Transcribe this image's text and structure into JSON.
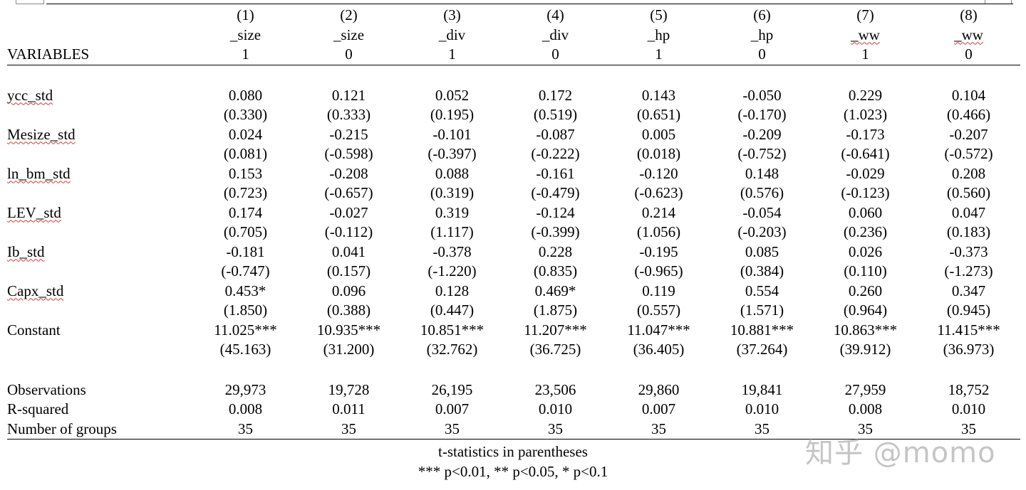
{
  "table": {
    "columns": [
      {
        "num": "(1)",
        "dep": "_size",
        "group": "1"
      },
      {
        "num": "(2)",
        "dep": "_size",
        "group": "0"
      },
      {
        "num": "(3)",
        "dep": "_div",
        "group": "1"
      },
      {
        "num": "(4)",
        "dep": "_div",
        "group": "0"
      },
      {
        "num": "(5)",
        "dep": "_hp",
        "group": "1"
      },
      {
        "num": "(6)",
        "dep": "_hp",
        "group": "0"
      },
      {
        "num": "(7)",
        "dep": "_ww",
        "group": "1"
      },
      {
        "num": "(8)",
        "dep": "_ww",
        "group": "0"
      }
    ],
    "variables_header": "VARIABLES",
    "rows": [
      {
        "name": "ycc_std",
        "coef": [
          "0.080",
          "0.121",
          "0.052",
          "0.172",
          "0.143",
          "-0.050",
          "0.229",
          "0.104"
        ],
        "tstat": [
          "(0.330)",
          "(0.333)",
          "(0.195)",
          "(0.519)",
          "(0.651)",
          "(-0.170)",
          "(1.023)",
          "(0.466)"
        ]
      },
      {
        "name": "Mesize_std",
        "coef": [
          "0.024",
          "-0.215",
          "-0.101",
          "-0.087",
          "0.005",
          "-0.209",
          "-0.173",
          "-0.207"
        ],
        "tstat": [
          "(0.081)",
          "(-0.598)",
          "(-0.397)",
          "(-0.222)",
          "(0.018)",
          "(-0.752)",
          "(-0.641)",
          "(-0.572)"
        ]
      },
      {
        "name": "ln_bm_std",
        "coef": [
          "0.153",
          "-0.208",
          "0.088",
          "-0.161",
          "-0.120",
          "0.148",
          "-0.029",
          "0.208"
        ],
        "tstat": [
          "(0.723)",
          "(-0.657)",
          "(0.319)",
          "(-0.479)",
          "(-0.623)",
          "(0.576)",
          "(-0.123)",
          "(0.560)"
        ]
      },
      {
        "name": "LEV_std",
        "coef": [
          "0.174",
          "-0.027",
          "0.319",
          "-0.124",
          "0.214",
          "-0.054",
          "0.060",
          "0.047"
        ],
        "tstat": [
          "(0.705)",
          "(-0.112)",
          "(1.117)",
          "(-0.399)",
          "(1.056)",
          "(-0.203)",
          "(0.236)",
          "(0.183)"
        ]
      },
      {
        "name": "Ib_std",
        "coef": [
          "-0.181",
          "0.041",
          "-0.378",
          "0.228",
          "-0.195",
          "0.085",
          "0.026",
          "-0.373"
        ],
        "tstat": [
          "(-0.747)",
          "(0.157)",
          "(-1.220)",
          "(0.835)",
          "(-0.965)",
          "(0.384)",
          "(0.110)",
          "(-1.273)"
        ]
      },
      {
        "name": "Capx_std",
        "coef": [
          "0.453*",
          "0.096",
          "0.128",
          "0.469*",
          "0.119",
          "0.554",
          "0.260",
          "0.347"
        ],
        "tstat": [
          "(1.850)",
          "(0.388)",
          "(0.447)",
          "(1.875)",
          "(0.557)",
          "(1.571)",
          "(0.964)",
          "(0.945)"
        ]
      },
      {
        "name": "Constant",
        "coef": [
          "11.025***",
          "10.935***",
          "10.851***",
          "11.207***",
          "11.047***",
          "10.881***",
          "10.863***",
          "11.415***"
        ],
        "tstat": [
          "(45.163)",
          "(31.200)",
          "(32.762)",
          "(36.725)",
          "(36.405)",
          "(37.264)",
          "(39.912)",
          "(36.973)"
        ]
      }
    ],
    "stats": [
      {
        "name": "Observations",
        "values": [
          "29,973",
          "19,728",
          "26,195",
          "23,506",
          "29,860",
          "19,841",
          "27,959",
          "18,752"
        ]
      },
      {
        "name": "R-squared",
        "values": [
          "0.008",
          "0.011",
          "0.007",
          "0.010",
          "0.007",
          "0.010",
          "0.008",
          "0.010"
        ]
      },
      {
        "name": "Number of groups",
        "values": [
          "35",
          "35",
          "35",
          "35",
          "35",
          "35",
          "35",
          "35"
        ]
      }
    ]
  },
  "notes": {
    "line1": "t-statistics in parentheses",
    "line2": "*** p<0.01, ** p<0.05, * p<0.1"
  },
  "watermark": "知乎 @momo"
}
